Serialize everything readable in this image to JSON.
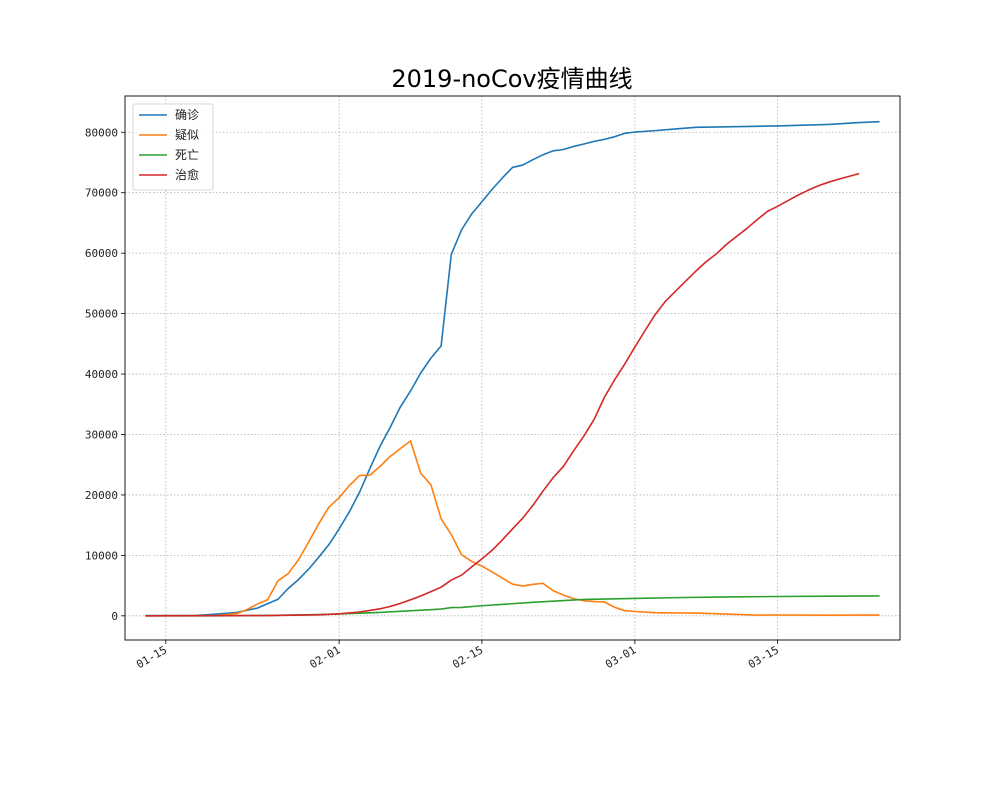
{
  "chart_data": {
    "type": "line",
    "title": "2019-noCov疫情曲线",
    "xlabel": "",
    "ylabel": "",
    "x_axis_type": "date",
    "xlim": [
      "2020-01-11",
      "2020-03-27"
    ],
    "ylim": [
      -4000,
      86000
    ],
    "x_ticks": [
      {
        "date": "2020-01-15",
        "label": "01-15"
      },
      {
        "date": "2020-02-01",
        "label": "02-01"
      },
      {
        "date": "2020-02-15",
        "label": "02-15"
      },
      {
        "date": "2020-03-01",
        "label": "03-01"
      },
      {
        "date": "2020-03-15",
        "label": "03-15"
      }
    ],
    "y_ticks": [
      0,
      10000,
      20000,
      30000,
      40000,
      50000,
      60000,
      70000,
      80000
    ],
    "grid": true,
    "legend_position": "top-left",
    "series": [
      {
        "name": "确诊",
        "color": "#1f77b4",
        "points": [
          [
            "2020-01-13",
            41
          ],
          [
            "2020-01-16",
            45
          ],
          [
            "2020-01-18",
            62
          ],
          [
            "2020-01-20",
            291
          ],
          [
            "2020-01-22",
            571
          ],
          [
            "2020-01-24",
            1287
          ],
          [
            "2020-01-26",
            2744
          ],
          [
            "2020-01-27",
            4515
          ],
          [
            "2020-01-28",
            5974
          ],
          [
            "2020-01-29",
            7711
          ],
          [
            "2020-01-30",
            9692
          ],
          [
            "2020-01-31",
            11791
          ],
          [
            "2020-02-01",
            14380
          ],
          [
            "2020-02-02",
            17205
          ],
          [
            "2020-02-03",
            20438
          ],
          [
            "2020-02-04",
            24324
          ],
          [
            "2020-02-05",
            28018
          ],
          [
            "2020-02-06",
            31161
          ],
          [
            "2020-02-07",
            34546
          ],
          [
            "2020-02-08",
            37198
          ],
          [
            "2020-02-09",
            40171
          ],
          [
            "2020-02-10",
            42638
          ],
          [
            "2020-02-11",
            44653
          ],
          [
            "2020-02-12",
            59804
          ],
          [
            "2020-02-13",
            63851
          ],
          [
            "2020-02-14",
            66492
          ],
          [
            "2020-02-15",
            68500
          ],
          [
            "2020-02-16",
            70548
          ],
          [
            "2020-02-17",
            72436
          ],
          [
            "2020-02-18",
            74185
          ],
          [
            "2020-02-19",
            74576
          ],
          [
            "2020-02-20",
            75465
          ],
          [
            "2020-02-21",
            76288
          ],
          [
            "2020-02-22",
            76936
          ],
          [
            "2020-02-23",
            77150
          ],
          [
            "2020-02-24",
            77658
          ],
          [
            "2020-02-25",
            78064
          ],
          [
            "2020-02-26",
            78497
          ],
          [
            "2020-02-27",
            78824
          ],
          [
            "2020-02-28",
            79251
          ],
          [
            "2020-02-29",
            79824
          ],
          [
            "2020-03-01",
            80026
          ],
          [
            "2020-03-03",
            80270
          ],
          [
            "2020-03-05",
            80552
          ],
          [
            "2020-03-07",
            80813
          ],
          [
            "2020-03-10",
            80904
          ],
          [
            "2020-03-15",
            81048
          ],
          [
            "2020-03-20",
            81300
          ],
          [
            "2020-03-23",
            81601
          ],
          [
            "2020-03-25",
            81747
          ]
        ]
      },
      {
        "name": "疑似",
        "color": "#ff7f0e",
        "points": [
          [
            "2020-01-13",
            0
          ],
          [
            "2020-01-20",
            54
          ],
          [
            "2020-01-22",
            393
          ],
          [
            "2020-01-23",
            1072
          ],
          [
            "2020-01-24",
            1965
          ],
          [
            "2020-01-25",
            2684
          ],
          [
            "2020-01-26",
            5794
          ],
          [
            "2020-01-27",
            6973
          ],
          [
            "2020-01-28",
            9239
          ],
          [
            "2020-01-29",
            12167
          ],
          [
            "2020-01-30",
            15238
          ],
          [
            "2020-01-31",
            17988
          ],
          [
            "2020-02-01",
            19544
          ],
          [
            "2020-02-02",
            21558
          ],
          [
            "2020-02-03",
            23214
          ],
          [
            "2020-02-04",
            23260
          ],
          [
            "2020-02-05",
            24702
          ],
          [
            "2020-02-06",
            26359
          ],
          [
            "2020-02-07",
            27657
          ],
          [
            "2020-02-08",
            28942
          ],
          [
            "2020-02-09",
            23589
          ],
          [
            "2020-02-10",
            21675
          ],
          [
            "2020-02-11",
            16067
          ],
          [
            "2020-02-12",
            13435
          ],
          [
            "2020-02-13",
            10109
          ],
          [
            "2020-02-14",
            9000
          ],
          [
            "2020-02-15",
            8228
          ],
          [
            "2020-02-16",
            7264
          ],
          [
            "2020-02-17",
            6242
          ],
          [
            "2020-02-18",
            5248
          ],
          [
            "2020-02-19",
            4922
          ],
          [
            "2020-02-20",
            5206
          ],
          [
            "2020-02-21",
            5365
          ],
          [
            "2020-02-22",
            4148
          ],
          [
            "2020-02-23",
            3434
          ],
          [
            "2020-02-24",
            2824
          ],
          [
            "2020-02-25",
            2491
          ],
          [
            "2020-02-26",
            2358
          ],
          [
            "2020-02-27",
            2308
          ],
          [
            "2020-02-28",
            1418
          ],
          [
            "2020-02-29",
            851
          ],
          [
            "2020-03-01",
            715
          ],
          [
            "2020-03-03",
            520
          ],
          [
            "2020-03-05",
            480
          ],
          [
            "2020-03-07",
            460
          ],
          [
            "2020-03-10",
            285
          ],
          [
            "2020-03-13",
            115
          ],
          [
            "2020-03-15",
            134
          ],
          [
            "2020-03-20",
            104
          ],
          [
            "2020-03-23",
            132
          ],
          [
            "2020-03-25",
            120
          ]
        ]
      },
      {
        "name": "死亡",
        "color": "#2ca02c",
        "points": [
          [
            "2020-01-13",
            0
          ],
          [
            "2020-01-20",
            6
          ],
          [
            "2020-01-25",
            56
          ],
          [
            "2020-01-30",
            213
          ],
          [
            "2020-02-01",
            304
          ],
          [
            "2020-02-05",
            563
          ],
          [
            "2020-02-10",
            1016
          ],
          [
            "2020-02-11",
            1113
          ],
          [
            "2020-02-12",
            1367
          ],
          [
            "2020-02-13",
            1380
          ],
          [
            "2020-02-15",
            1665
          ],
          [
            "2020-02-20",
            2236
          ],
          [
            "2020-02-25",
            2715
          ],
          [
            "2020-03-01",
            2870
          ],
          [
            "2020-03-05",
            3012
          ],
          [
            "2020-03-10",
            3119
          ],
          [
            "2020-03-15",
            3199
          ],
          [
            "2020-03-20",
            3253
          ],
          [
            "2020-03-25",
            3283
          ]
        ]
      },
      {
        "name": "治愈",
        "color": "#d62728",
        "points": [
          [
            "2020-01-13",
            0
          ],
          [
            "2020-01-20",
            25
          ],
          [
            "2020-01-25",
            49
          ],
          [
            "2020-01-30",
            171
          ],
          [
            "2020-02-01",
            328
          ],
          [
            "2020-02-03",
            632
          ],
          [
            "2020-02-04",
            892
          ],
          [
            "2020-02-05",
            1153
          ],
          [
            "2020-02-06",
            1540
          ],
          [
            "2020-02-07",
            2050
          ],
          [
            "2020-02-08",
            2649
          ],
          [
            "2020-02-09",
            3281
          ],
          [
            "2020-02-10",
            3996
          ],
          [
            "2020-02-11",
            4740
          ],
          [
            "2020-02-12",
            5911
          ],
          [
            "2020-02-13",
            6723
          ],
          [
            "2020-02-14",
            8096
          ],
          [
            "2020-02-15",
            9419
          ],
          [
            "2020-02-16",
            10844
          ],
          [
            "2020-02-17",
            12552
          ],
          [
            "2020-02-18",
            14376
          ],
          [
            "2020-02-19",
            16155
          ],
          [
            "2020-02-20",
            18264
          ],
          [
            "2020-02-21",
            20659
          ],
          [
            "2020-02-22",
            22888
          ],
          [
            "2020-02-23",
            24734
          ],
          [
            "2020-02-24",
            27323
          ],
          [
            "2020-02-25",
            29745
          ],
          [
            "2020-02-26",
            32495
          ],
          [
            "2020-02-27",
            36117
          ],
          [
            "2020-02-28",
            39002
          ],
          [
            "2020-02-29",
            41625
          ],
          [
            "2020-03-01",
            44462
          ],
          [
            "2020-03-02",
            47204
          ],
          [
            "2020-03-03",
            49856
          ],
          [
            "2020-03-04",
            52045
          ],
          [
            "2020-03-05",
            53726
          ],
          [
            "2020-03-06",
            55404
          ],
          [
            "2020-03-07",
            57065
          ],
          [
            "2020-03-08",
            58600
          ],
          [
            "2020-03-09",
            59897
          ],
          [
            "2020-03-10",
            61475
          ],
          [
            "2020-03-11",
            62793
          ],
          [
            "2020-03-12",
            64111
          ],
          [
            "2020-03-13",
            65541
          ],
          [
            "2020-03-14",
            66911
          ],
          [
            "2020-03-15",
            67749
          ],
          [
            "2020-03-16",
            68679
          ],
          [
            "2020-03-17",
            69601
          ],
          [
            "2020-03-18",
            70420
          ],
          [
            "2020-03-19",
            71150
          ],
          [
            "2020-03-20",
            71740
          ],
          [
            "2020-03-21",
            72244
          ],
          [
            "2020-03-22",
            72703
          ],
          [
            "2020-03-23",
            73159
          ]
        ]
      }
    ]
  }
}
